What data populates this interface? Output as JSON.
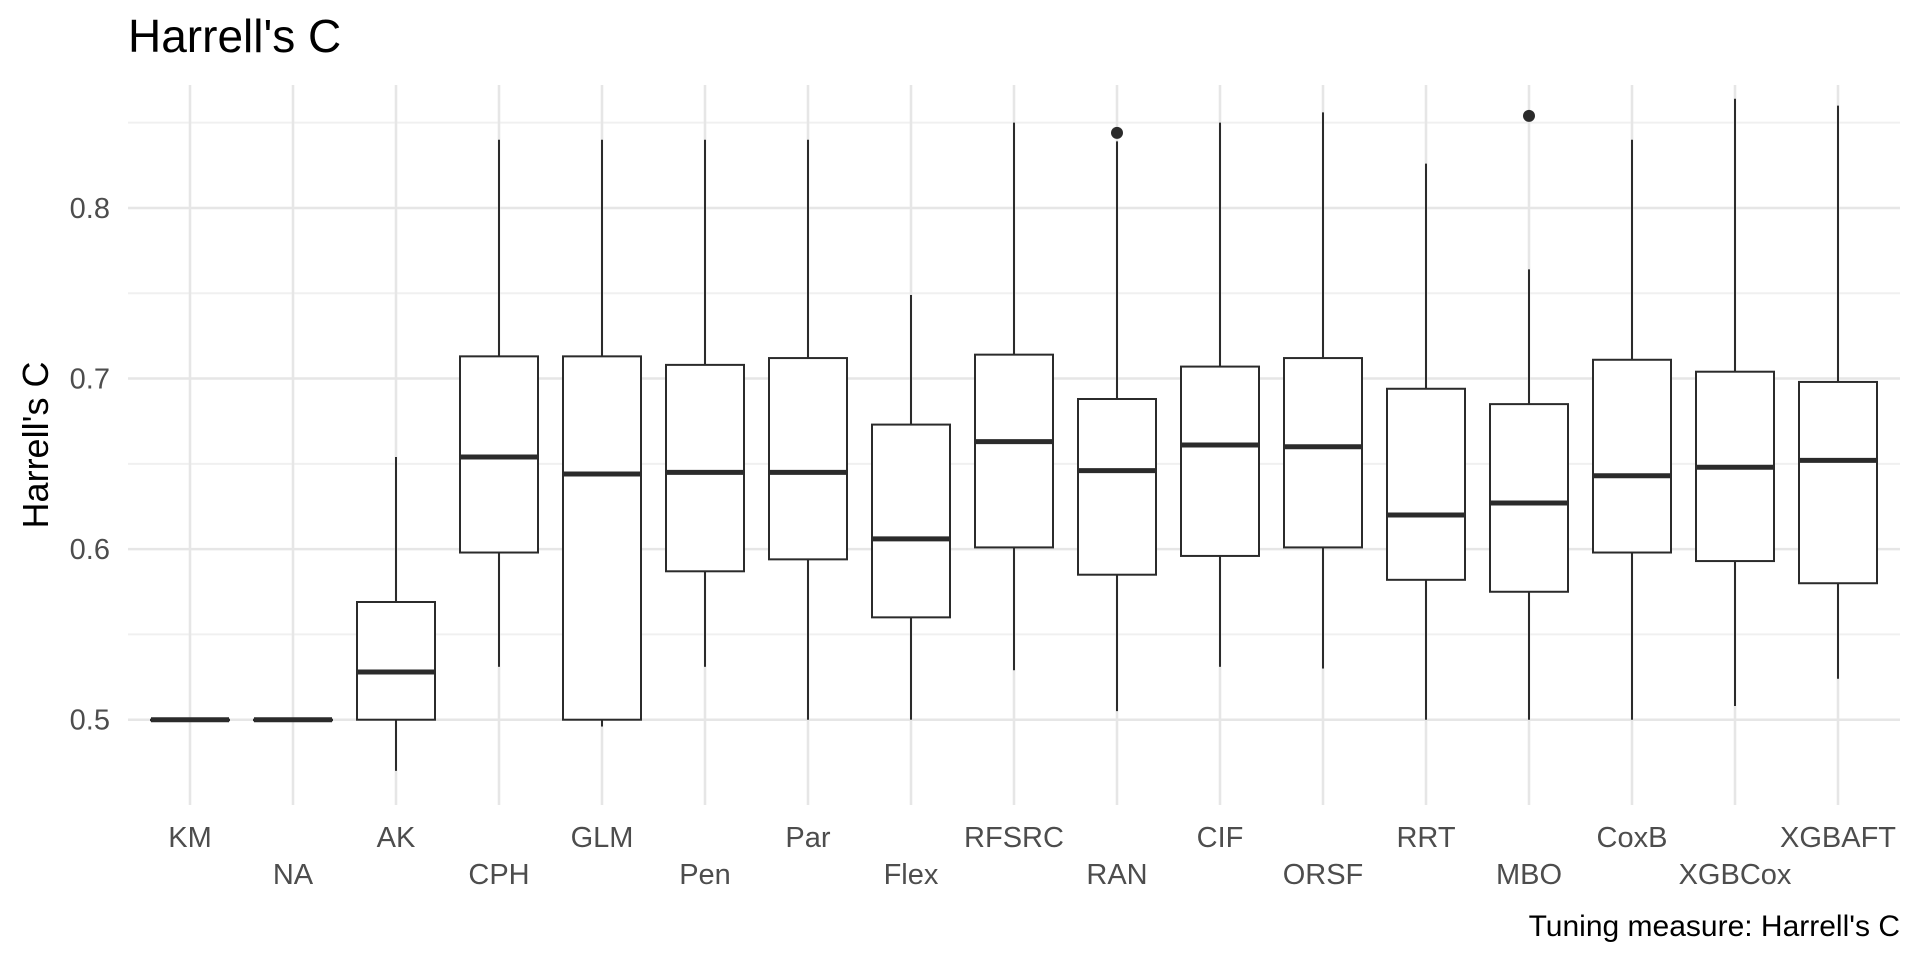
{
  "chart_data": {
    "type": "boxplot",
    "title": "Harrell's C",
    "ylabel": "Harrell's C",
    "xlabel": "",
    "caption": "Tuning measure: Harrell's C",
    "ylim": [
      0.45,
      0.875
    ],
    "yticks": [
      0.5,
      0.6,
      0.7,
      0.8
    ],
    "ytick_labels": [
      "0.5",
      "0.6",
      "0.7",
      "0.8"
    ],
    "grid": true,
    "categories": [
      "KM",
      "NA",
      "AK",
      "CPH",
      "GLM",
      "Pen",
      "Par",
      "Flex",
      "RFSRC",
      "RAN",
      "CIF",
      "ORSF",
      "RRT",
      "MBO",
      "CoxB",
      "XGBCox",
      "XGBAFT"
    ],
    "boxes": [
      {
        "name": "KM",
        "min": 0.5,
        "q1": 0.5,
        "median": 0.5,
        "q3": 0.5,
        "max": 0.5,
        "outliers": []
      },
      {
        "name": "NA",
        "min": 0.5,
        "q1": 0.5,
        "median": 0.5,
        "q3": 0.5,
        "max": 0.5,
        "outliers": []
      },
      {
        "name": "AK",
        "min": 0.47,
        "q1": 0.5,
        "median": 0.528,
        "q3": 0.569,
        "max": 0.654,
        "outliers": []
      },
      {
        "name": "CPH",
        "min": 0.531,
        "q1": 0.598,
        "median": 0.654,
        "q3": 0.713,
        "max": 0.84,
        "outliers": []
      },
      {
        "name": "GLM",
        "min": 0.496,
        "q1": 0.5,
        "median": 0.644,
        "q3": 0.713,
        "max": 0.84,
        "outliers": []
      },
      {
        "name": "Pen",
        "min": 0.531,
        "q1": 0.587,
        "median": 0.645,
        "q3": 0.708,
        "max": 0.84,
        "outliers": []
      },
      {
        "name": "Par",
        "min": 0.5,
        "q1": 0.594,
        "median": 0.645,
        "q3": 0.712,
        "max": 0.84,
        "outliers": []
      },
      {
        "name": "Flex",
        "min": 0.5,
        "q1": 0.56,
        "median": 0.606,
        "q3": 0.673,
        "max": 0.749,
        "outliers": []
      },
      {
        "name": "RFSRC",
        "min": 0.529,
        "q1": 0.601,
        "median": 0.663,
        "q3": 0.714,
        "max": 0.85,
        "outliers": []
      },
      {
        "name": "RAN",
        "min": 0.505,
        "q1": 0.585,
        "median": 0.646,
        "q3": 0.688,
        "max": 0.839,
        "outliers": [
          0.844
        ]
      },
      {
        "name": "CIF",
        "min": 0.531,
        "q1": 0.596,
        "median": 0.661,
        "q3": 0.707,
        "max": 0.85,
        "outliers": []
      },
      {
        "name": "ORSF",
        "min": 0.53,
        "q1": 0.601,
        "median": 0.66,
        "q3": 0.712,
        "max": 0.856,
        "outliers": []
      },
      {
        "name": "RRT",
        "min": 0.5,
        "q1": 0.582,
        "median": 0.62,
        "q3": 0.694,
        "max": 0.826,
        "outliers": []
      },
      {
        "name": "MBO",
        "min": 0.5,
        "q1": 0.575,
        "median": 0.627,
        "q3": 0.685,
        "max": 0.764,
        "outliers": [
          0.854
        ]
      },
      {
        "name": "CoxB",
        "min": 0.5,
        "q1": 0.598,
        "median": 0.643,
        "q3": 0.711,
        "max": 0.84,
        "outliers": []
      },
      {
        "name": "XGBCox",
        "min": 0.508,
        "q1": 0.593,
        "median": 0.648,
        "q3": 0.704,
        "max": 0.864,
        "outliers": []
      },
      {
        "name": "XGBAFT",
        "min": 0.524,
        "q1": 0.58,
        "median": 0.652,
        "q3": 0.698,
        "max": 0.86,
        "outliers": []
      }
    ],
    "colors": {
      "box_stroke": "#2b2b2b",
      "grid_major": "#e6e6e6",
      "grid_minor": "#f0f0f0",
      "tick_text": "#4d4d4d",
      "title_text": "#000000",
      "background": "#ffffff"
    }
  }
}
